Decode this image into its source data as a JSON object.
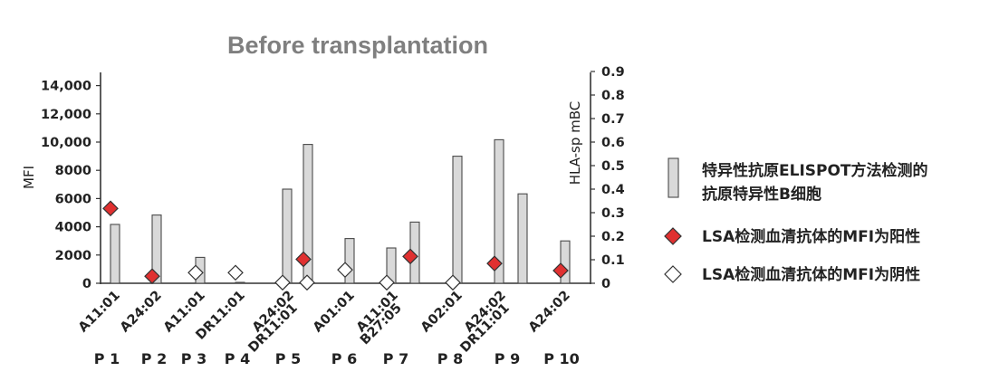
{
  "chart_data": {
    "type": "bar",
    "title": "Before transplantation",
    "ylabel_left": "MFI",
    "ylabel_right": "HLA-sp mBC",
    "ylim_left": [
      0,
      15000
    ],
    "ylim_right": [
      0,
      0.9
    ],
    "left_ticks": [
      "0",
      "2000",
      "4000",
      "6000",
      "8000",
      "10,000",
      "12,000",
      "14,000"
    ],
    "right_ticks": [
      "0",
      "0.1",
      "0.2",
      "0.3",
      "0.4",
      "0.5",
      "0.6",
      "0.7",
      "0.8",
      "0.9"
    ],
    "patients": [
      {
        "label": "P 1",
        "categories": [
          "A11:01"
        ]
      },
      {
        "label": "P 2",
        "categories": [
          "A24:02"
        ]
      },
      {
        "label": "P 3",
        "categories": [
          "A11:01"
        ]
      },
      {
        "label": "P 4",
        "categories": [
          "DR11:01"
        ]
      },
      {
        "label": "P 5",
        "categories": [
          "A24:02",
          "DR11:01"
        ]
      },
      {
        "label": "P 6",
        "categories": [
          "A01:01"
        ]
      },
      {
        "label": "P 7",
        "categories": [
          "A11:01",
          "B27:05"
        ]
      },
      {
        "label": "P 8",
        "categories": [
          "A02:01"
        ]
      },
      {
        "label": "P 9",
        "categories": [
          "A24:02",
          "DR11:01"
        ]
      },
      {
        "label": "P 10",
        "categories": [
          "A24:02"
        ]
      }
    ],
    "series": [
      {
        "name": "特异性抗原ELISPOT方法检测的抗原特异性B细胞",
        "axis": "right",
        "values": [
          0.25,
          0.29,
          0.11,
          0.0,
          0.4,
          0.59,
          0.19,
          0.15,
          0.26,
          0.54,
          0.61,
          0.38,
          0.18
        ]
      },
      {
        "name": "LSA检测血清抗体的MFI为阳性",
        "axis": "left",
        "marker": "diamond-filled",
        "points": [
          {
            "index": 0,
            "value": 5300
          },
          {
            "index": 1,
            "value": 500
          },
          {
            "index": 5,
            "value": 1700
          },
          {
            "index": 8,
            "value": 1900
          },
          {
            "index": 10,
            "value": 1400
          },
          {
            "index": 12,
            "value": 900
          }
        ]
      },
      {
        "name": "LSA检测血清抗体的MFI为阴性",
        "axis": "left",
        "marker": "diamond-open",
        "points": [
          {
            "index": 2,
            "value": 750
          },
          {
            "index": 3,
            "value": 750
          },
          {
            "index": 4,
            "value": 50
          },
          {
            "index": 4,
            "value": 50,
            "offset": "right"
          },
          {
            "index": 6,
            "value": 950
          },
          {
            "index": 7,
            "value": 50
          },
          {
            "index": 9,
            "value": 50
          }
        ]
      }
    ],
    "legend": {
      "position": "right",
      "bar_label_line1": "特异性抗原ELISPOT方法检测的",
      "bar_label_line2": "抗原特异性B细胞",
      "pos_label": "LSA检测血清抗体的MFI为阳性",
      "neg_label": "LSA检测血清抗体的MFI为阴性"
    },
    "colors": {
      "bar_fill": "#d9d9d9",
      "bar_stroke": "#4a4a4a",
      "positive": "#e03030",
      "negative": "#ffffff"
    }
  }
}
